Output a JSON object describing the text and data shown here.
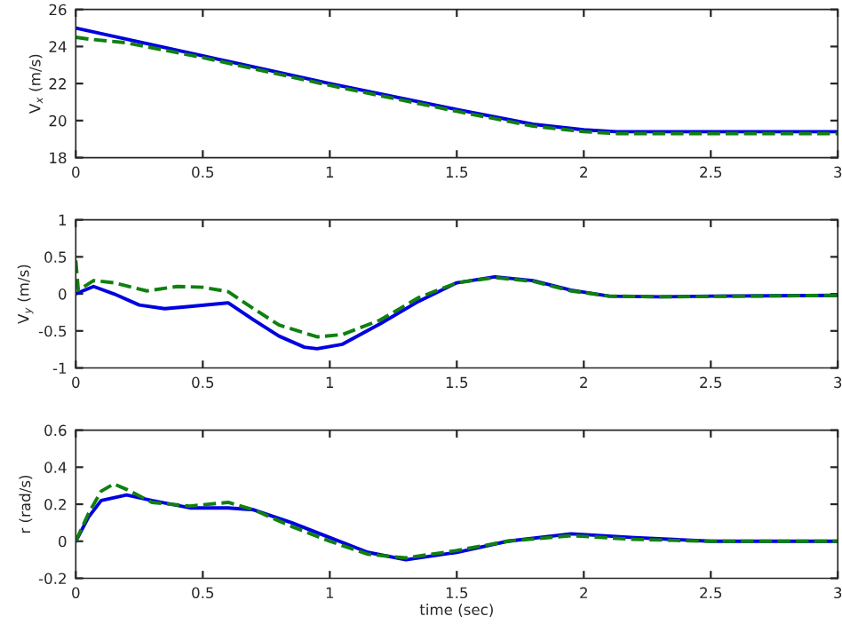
{
  "chart_data": [
    {
      "type": "line",
      "ylabel": "V$_{x}$ (m/s)",
      "xlim": [
        0,
        3
      ],
      "xticks": [
        0,
        0.5,
        1,
        1.5,
        2,
        2.5,
        3
      ],
      "ylim": [
        18,
        26
      ],
      "yticks": [
        18,
        20,
        22,
        24,
        26
      ],
      "series": [
        {
          "color": "#0000e0",
          "line_style": "solid",
          "x": [
            0,
            0.5,
            1,
            1.5,
            1.8,
            2,
            2.13,
            3
          ],
          "values": [
            25,
            23.5,
            22,
            20.6,
            19.8,
            19.5,
            19.4,
            19.4
          ]
        },
        {
          "color": "#108010",
          "line_style": "dashed",
          "x": [
            0,
            0.05,
            0.2,
            0.5,
            1,
            1.5,
            1.8,
            2,
            2.13,
            3
          ],
          "values": [
            24.5,
            24.4,
            24.2,
            23.4,
            21.9,
            20.5,
            19.7,
            19.4,
            19.3,
            19.3
          ]
        }
      ]
    },
    {
      "type": "line",
      "ylabel": "V$_{y}$ (m/s)",
      "xlim": [
        0,
        3
      ],
      "xticks": [
        0,
        0.5,
        1,
        1.5,
        2,
        2.5,
        3
      ],
      "ylim": [
        -1,
        1
      ],
      "yticks": [
        -1,
        -0.5,
        0,
        0.5,
        1
      ],
      "series": [
        {
          "color": "#0000e0",
          "line_style": "solid",
          "x": [
            0,
            0.07,
            0.15,
            0.25,
            0.35,
            0.45,
            0.6,
            0.7,
            0.8,
            0.9,
            0.95,
            1.05,
            1.2,
            1.35,
            1.5,
            1.65,
            1.8,
            1.95,
            2.1,
            2.3,
            2.5,
            3
          ],
          "values": [
            0,
            0.1,
            0,
            -0.15,
            -0.2,
            -0.17,
            -0.12,
            -0.35,
            -0.57,
            -0.72,
            -0.74,
            -0.68,
            -0.4,
            -0.1,
            0.15,
            0.23,
            0.18,
            0.05,
            -0.03,
            -0.04,
            -0.03,
            -0.02
          ]
        },
        {
          "color": "#108010",
          "line_style": "dashed",
          "x": [
            0,
            0.01,
            0.07,
            0.15,
            0.28,
            0.4,
            0.5,
            0.6,
            0.7,
            0.8,
            0.95,
            1.05,
            1.2,
            1.35,
            1.5,
            1.65,
            1.8,
            1.95,
            2.1,
            2.3,
            3
          ],
          "values": [
            0.45,
            0.05,
            0.18,
            0.15,
            0.04,
            0.1,
            0.09,
            0.03,
            -0.2,
            -0.42,
            -0.58,
            -0.55,
            -0.35,
            -0.05,
            0.15,
            0.22,
            0.17,
            0.04,
            -0.03,
            -0.04,
            -0.02
          ]
        }
      ]
    },
    {
      "type": "line",
      "xlabel": "time (sec)",
      "ylabel": "r (rad/s)",
      "xlim": [
        0,
        3
      ],
      "xticks": [
        0,
        0.5,
        1,
        1.5,
        2,
        2.5,
        3
      ],
      "ylim": [
        -0.2,
        0.6
      ],
      "yticks": [
        -0.2,
        0,
        0.2,
        0.4,
        0.6
      ],
      "series": [
        {
          "color": "#0000e0",
          "line_style": "solid",
          "x": [
            0,
            0.05,
            0.1,
            0.2,
            0.3,
            0.45,
            0.6,
            0.7,
            0.85,
            1,
            1.15,
            1.3,
            1.5,
            1.7,
            1.95,
            2.2,
            2.5,
            3
          ],
          "values": [
            0,
            0.13,
            0.22,
            0.25,
            0.22,
            0.18,
            0.18,
            0.17,
            0.1,
            0.02,
            -0.06,
            -0.1,
            -0.06,
            0,
            0.04,
            0.02,
            0,
            0
          ]
        },
        {
          "color": "#108010",
          "line_style": "dashed",
          "x": [
            0,
            0.05,
            0.1,
            0.15,
            0.2,
            0.3,
            0.45,
            0.6,
            0.7,
            0.85,
            1,
            1.15,
            1.3,
            1.5,
            1.7,
            1.95,
            2.2,
            2.5,
            3
          ],
          "values": [
            0,
            0.15,
            0.27,
            0.31,
            0.28,
            0.21,
            0.19,
            0.21,
            0.17,
            0.08,
            0,
            -0.07,
            -0.09,
            -0.05,
            0,
            0.03,
            0.01,
            0,
            0
          ]
        }
      ]
    }
  ]
}
